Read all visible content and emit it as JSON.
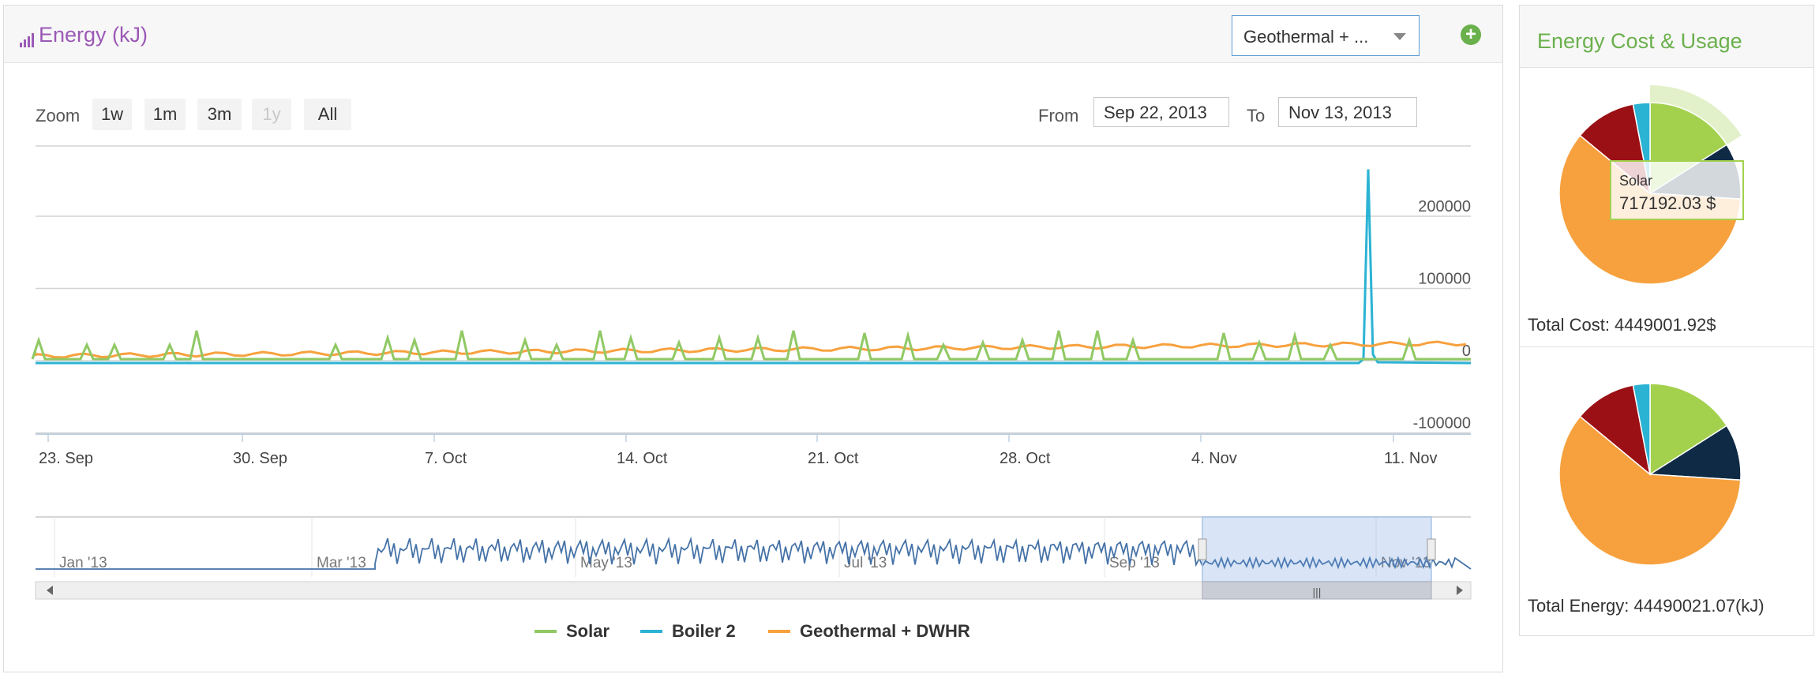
{
  "header": {
    "title": "Energy (kJ)",
    "selector_value": "Geothermal + ...",
    "add_icon": "plus-circle-icon",
    "title_icon": "signal-bars-icon"
  },
  "zoom": {
    "label": "Zoom",
    "buttons": [
      {
        "label": "1w",
        "enabled": true
      },
      {
        "label": "1m",
        "enabled": true
      },
      {
        "label": "3m",
        "enabled": true
      },
      {
        "label": "1y",
        "enabled": false
      },
      {
        "label": "All",
        "enabled": true
      }
    ]
  },
  "range": {
    "from_label": "From",
    "from_value": "Sep 22, 2013",
    "to_label": "To",
    "to_value": "Nov 13, 2013"
  },
  "chart_data": {
    "type": "line",
    "x_tick_labels": [
      "23. Sep",
      "30. Sep",
      "7. Oct",
      "14. Oct",
      "21. Oct",
      "28. Oct",
      "4. Nov",
      "11. Nov"
    ],
    "y_tick_labels": [
      "200000",
      "100000",
      "0",
      "-100000"
    ],
    "ylim": [
      -100000,
      300000
    ],
    "grid": true,
    "series": [
      {
        "name": "Solar",
        "color": "#90c964"
      },
      {
        "name": "Boiler 2",
        "color": "#2bb3d4"
      },
      {
        "name": "Geothermal + DWHR",
        "color": "#f7a13e"
      }
    ],
    "navigator_labels": [
      "Jan '13",
      "Mar '13",
      "May '13",
      "Jul '13",
      "Sep '13",
      "Nov '13"
    ]
  },
  "legend": {
    "items": [
      {
        "label": "Solar",
        "color": "#90c964"
      },
      {
        "label": "Boiler 2",
        "color": "#2bb3d4"
      },
      {
        "label": "Geothermal + DWHR",
        "color": "#f7a13e"
      }
    ]
  },
  "right_panel": {
    "title": "Energy Cost & Usage",
    "total_cost": "Total Cost: 4449001.92$",
    "total_energy": "Total Energy: 44490021.07(kJ)",
    "tooltip_title": "Solar",
    "tooltip_value": "717192.03 $",
    "pie_colors": [
      "#a3d14e",
      "#0f2a44",
      "#f7a13e",
      "#9a1015",
      "#2bb3d4"
    ]
  }
}
